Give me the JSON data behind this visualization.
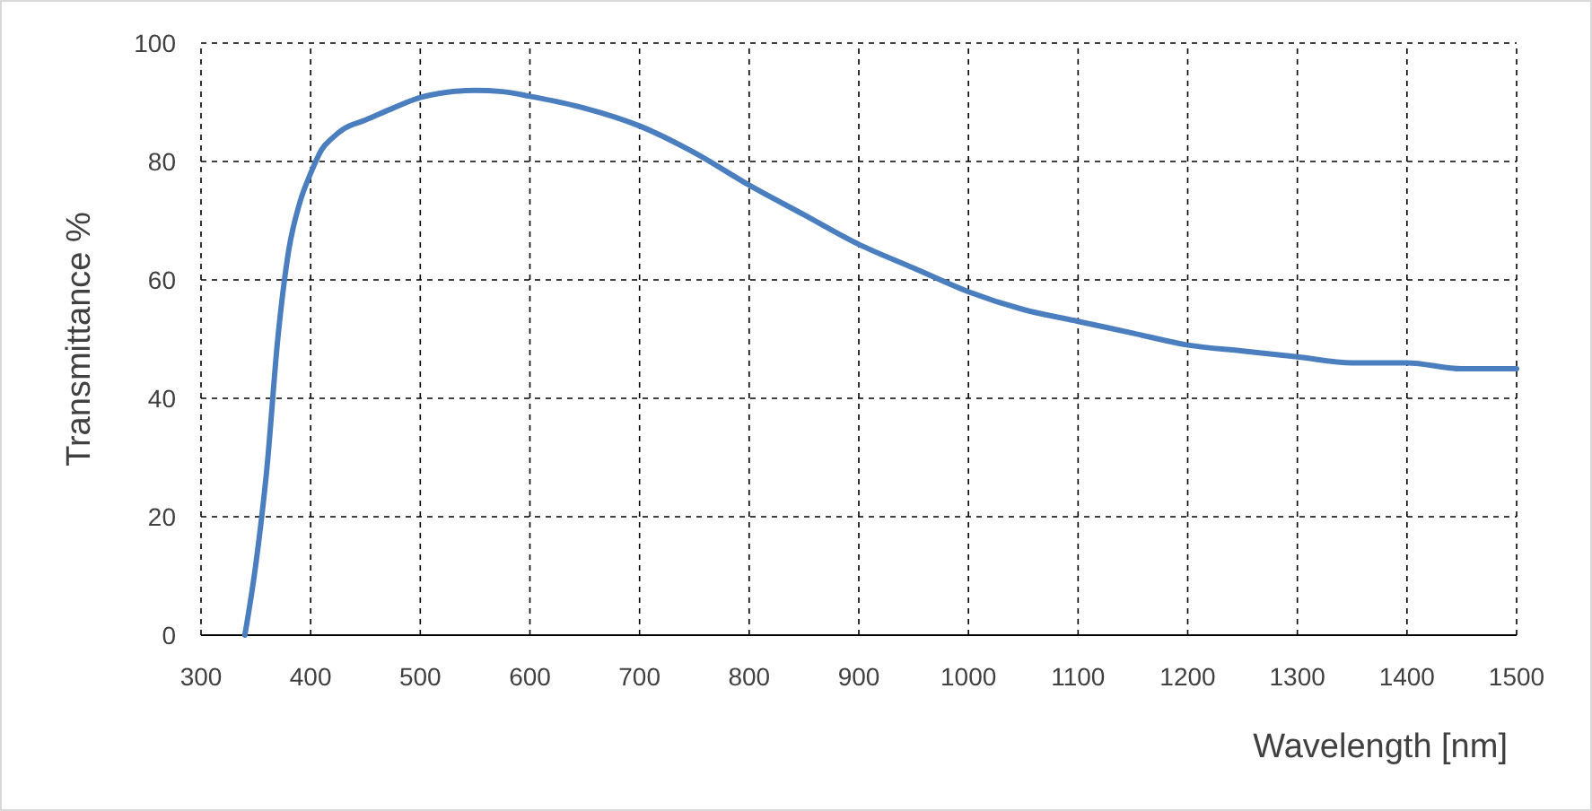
{
  "chart_data": {
    "type": "line",
    "xlabel": "Wavelength [nm]",
    "ylabel": "Transmittance %",
    "xlim": [
      300,
      1500
    ],
    "xticks": [
      300,
      400,
      500,
      600,
      700,
      800,
      900,
      1000,
      1100,
      1200,
      1300,
      1400,
      1500
    ],
    "ylim": [
      0,
      100
    ],
    "yticks": [
      0,
      20,
      40,
      60,
      80,
      100
    ],
    "grid": true,
    "line_style": "solid",
    "marker": "none",
    "series": [
      {
        "color": "#4a7ebf",
        "x": [
          340,
          350,
          360,
          370,
          380,
          390,
          400,
          410,
          420,
          430,
          450,
          475,
          500,
          525,
          550,
          575,
          600,
          650,
          700,
          750,
          800,
          850,
          900,
          950,
          1000,
          1050,
          1100,
          1150,
          1200,
          1250,
          1300,
          1350,
          1400,
          1450,
          1500
        ],
        "values": [
          0,
          12,
          28,
          50,
          65,
          73,
          78,
          82,
          84,
          85.5,
          87,
          89,
          90.8,
          91.7,
          92,
          91.8,
          91,
          89,
          86,
          81.5,
          76,
          71,
          66,
          62,
          58,
          55,
          53,
          51,
          49,
          48,
          47,
          46,
          46,
          45,
          45
        ]
      }
    ]
  }
}
